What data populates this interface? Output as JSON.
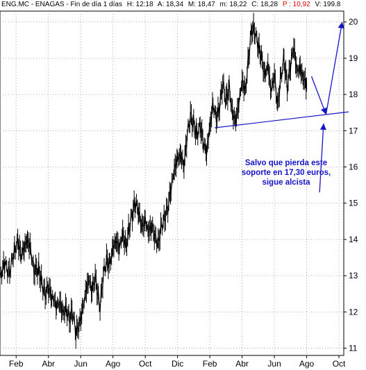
{
  "header": {
    "symbol": "ENG.MC - ENAGAS - Fin de día 1 días",
    "high": "H: 12:18",
    "open": "A: 18,34",
    "max": "M: 18,47",
    "min": "m: 18,22",
    "close": "C: 18,28",
    "pct": "P : 10,92",
    "volume": "V: 199.8",
    "neg_color": "#e00000"
  },
  "annotation": {
    "lines": [
      "Salvo que pierda este",
      "soporte en 17,30 euros,",
      "sigue alcista"
    ],
    "color": "#1414c8"
  },
  "chart_data": {
    "type": "line",
    "title": "",
    "xlabel": "",
    "ylabel": "",
    "ylim": [
      10.8,
      20.3
    ],
    "yticks": [
      11,
      12,
      13,
      14,
      15,
      16,
      17,
      18,
      19,
      20
    ],
    "xticks": [
      {
        "label": "Feb",
        "t": 1
      },
      {
        "label": "Abr",
        "t": 3
      },
      {
        "label": "Jun",
        "t": 5
      },
      {
        "label": "Ago",
        "t": 7
      },
      {
        "label": "Oct",
        "t": 9
      },
      {
        "label": "Dic",
        "t": 11
      },
      {
        "label": "Feb",
        "t": 13
      },
      {
        "label": "Abr",
        "t": 15
      },
      {
        "label": "Jun",
        "t": 17
      },
      {
        "label": "Ago",
        "t": 19
      },
      {
        "label": "Oct",
        "t": 21
      }
    ],
    "xlim": [
      0,
      21.3
    ],
    "grid": true,
    "series": [
      {
        "color": "#000000",
        "points": [
          [
            0.0,
            13.0
          ],
          [
            0.3,
            13.3
          ],
          [
            0.6,
            13.1
          ],
          [
            0.9,
            13.7
          ],
          [
            1.1,
            14.0
          ],
          [
            1.3,
            13.6
          ],
          [
            1.5,
            13.8
          ],
          [
            1.7,
            14.0
          ],
          [
            1.9,
            13.7
          ],
          [
            2.1,
            13.1
          ],
          [
            2.4,
            13.2
          ],
          [
            2.6,
            12.8
          ],
          [
            2.8,
            12.5
          ],
          [
            3.0,
            12.7
          ],
          [
            3.2,
            12.4
          ],
          [
            3.5,
            12.2
          ],
          [
            3.7,
            12.3
          ],
          [
            3.9,
            12.0
          ],
          [
            4.1,
            12.1
          ],
          [
            4.3,
            11.8
          ],
          [
            4.5,
            12.0
          ],
          [
            4.7,
            11.4
          ],
          [
            4.9,
            11.6
          ],
          [
            5.1,
            12.0
          ],
          [
            5.3,
            12.5
          ],
          [
            5.5,
            12.9
          ],
          [
            5.7,
            12.6
          ],
          [
            5.9,
            13.0
          ],
          [
            6.1,
            12.4
          ],
          [
            6.2,
            12.1
          ],
          [
            6.4,
            13.0
          ],
          [
            6.6,
            13.4
          ],
          [
            6.8,
            13.3
          ],
          [
            7.0,
            13.8
          ],
          [
            7.2,
            14.0
          ],
          [
            7.4,
            13.8
          ],
          [
            7.6,
            14.2
          ],
          [
            7.8,
            13.8
          ],
          [
            8.0,
            14.3
          ],
          [
            8.2,
            14.7
          ],
          [
            8.4,
            15.0
          ],
          [
            8.6,
            14.7
          ],
          [
            8.8,
            14.3
          ],
          [
            9.0,
            14.5
          ],
          [
            9.2,
            14.2
          ],
          [
            9.4,
            14.4
          ],
          [
            9.6,
            14.1
          ],
          [
            9.8,
            13.9
          ],
          [
            10.0,
            14.4
          ],
          [
            10.2,
            14.6
          ],
          [
            10.4,
            14.9
          ],
          [
            10.6,
            15.4
          ],
          [
            10.8,
            15.9
          ],
          [
            11.0,
            16.2
          ],
          [
            11.2,
            16.3
          ],
          [
            11.4,
            16.0
          ],
          [
            11.6,
            16.9
          ],
          [
            11.8,
            17.4
          ],
          [
            12.0,
            17.2
          ],
          [
            12.2,
            16.9
          ],
          [
            12.4,
            17.2
          ],
          [
            12.6,
            16.7
          ],
          [
            12.8,
            16.4
          ],
          [
            13.0,
            17.1
          ],
          [
            13.2,
            17.7
          ],
          [
            13.4,
            17.3
          ],
          [
            13.6,
            17.6
          ],
          [
            13.8,
            18.3
          ],
          [
            14.0,
            17.8
          ],
          [
            14.2,
            18.2
          ],
          [
            14.4,
            17.5
          ],
          [
            14.6,
            17.3
          ],
          [
            14.8,
            17.8
          ],
          [
            15.0,
            18.4
          ],
          [
            15.2,
            18.1
          ],
          [
            15.4,
            19.0
          ],
          [
            15.6,
            19.8
          ],
          [
            15.8,
            19.7
          ],
          [
            16.0,
            19.3
          ],
          [
            16.2,
            19.0
          ],
          [
            16.4,
            18.5
          ],
          [
            16.6,
            18.8
          ],
          [
            16.8,
            18.1
          ],
          [
            17.0,
            18.6
          ],
          [
            17.2,
            17.7
          ],
          [
            17.4,
            18.5
          ],
          [
            17.6,
            19.0
          ],
          [
            17.8,
            18.2
          ],
          [
            18.0,
            18.8
          ],
          [
            18.2,
            19.3
          ],
          [
            18.4,
            18.6
          ],
          [
            18.6,
            18.7
          ],
          [
            18.8,
            18.4
          ],
          [
            19.0,
            18.28
          ]
        ]
      }
    ],
    "support_line": {
      "from": [
        13.3,
        17.08
      ],
      "to": [
        21.6,
        17.52
      ],
      "color": "#1414c8"
    },
    "arrows": [
      {
        "from": [
          19.3,
          18.5
        ],
        "to": [
          20.2,
          17.45
        ],
        "color": "#1414c8"
      },
      {
        "from": [
          20.2,
          17.45
        ],
        "to": [
          21.2,
          20.0
        ],
        "color": "#1414c8"
      },
      {
        "from": [
          19.8,
          15.3
        ],
        "to": [
          20.05,
          17.2
        ],
        "color": "#1414c8"
      }
    ]
  }
}
